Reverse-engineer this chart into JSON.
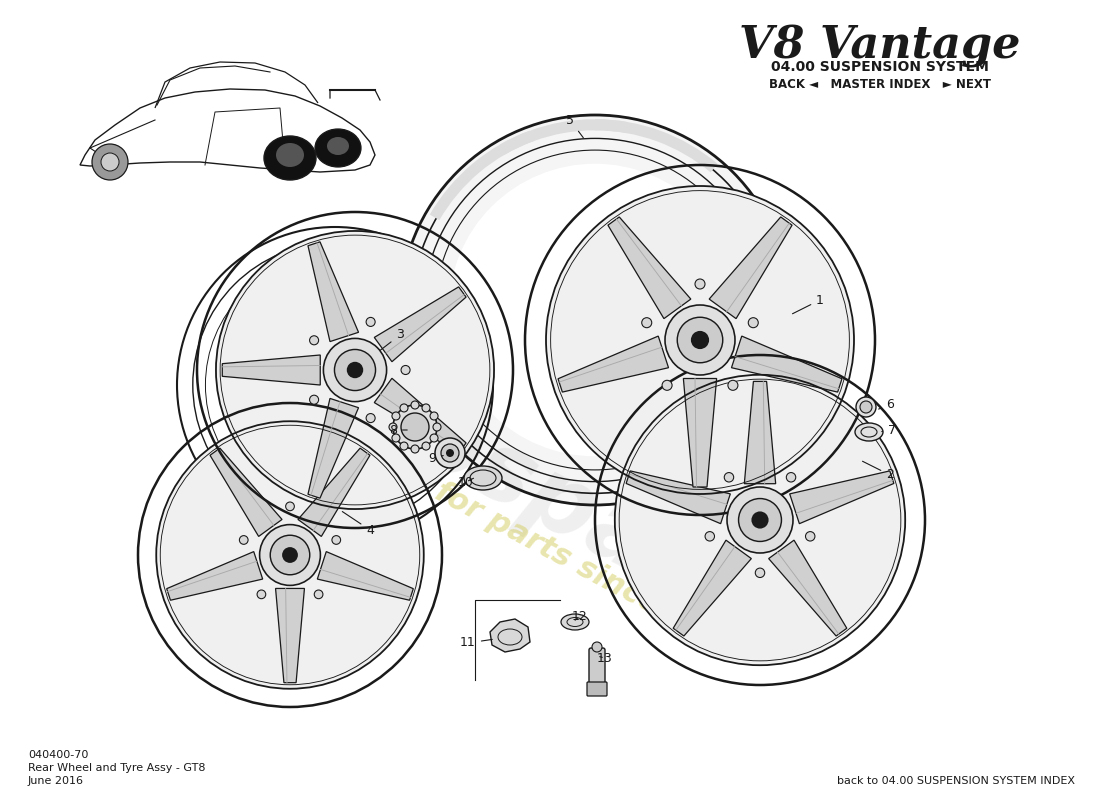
{
  "title": "V8 Vantage",
  "subtitle": "04.00 SUSPENSION SYSTEM",
  "nav_text": "BACK ◄   MASTER INDEX   ► NEXT",
  "part_number": "040400-70",
  "part_name": "Rear Wheel and Tyre Assy - GT8",
  "date": "June 2016",
  "back_link": "back to 04.00 SUSPENSION SYSTEM INDEX",
  "bg_color": "#ffffff",
  "line_color": "#1a1a1a",
  "spoke_fill": "#e8e8e8",
  "rim_fill": "#f0f0f0",
  "wm_grey": "#c8c8c8",
  "wm_yellow": "#d4cc60"
}
